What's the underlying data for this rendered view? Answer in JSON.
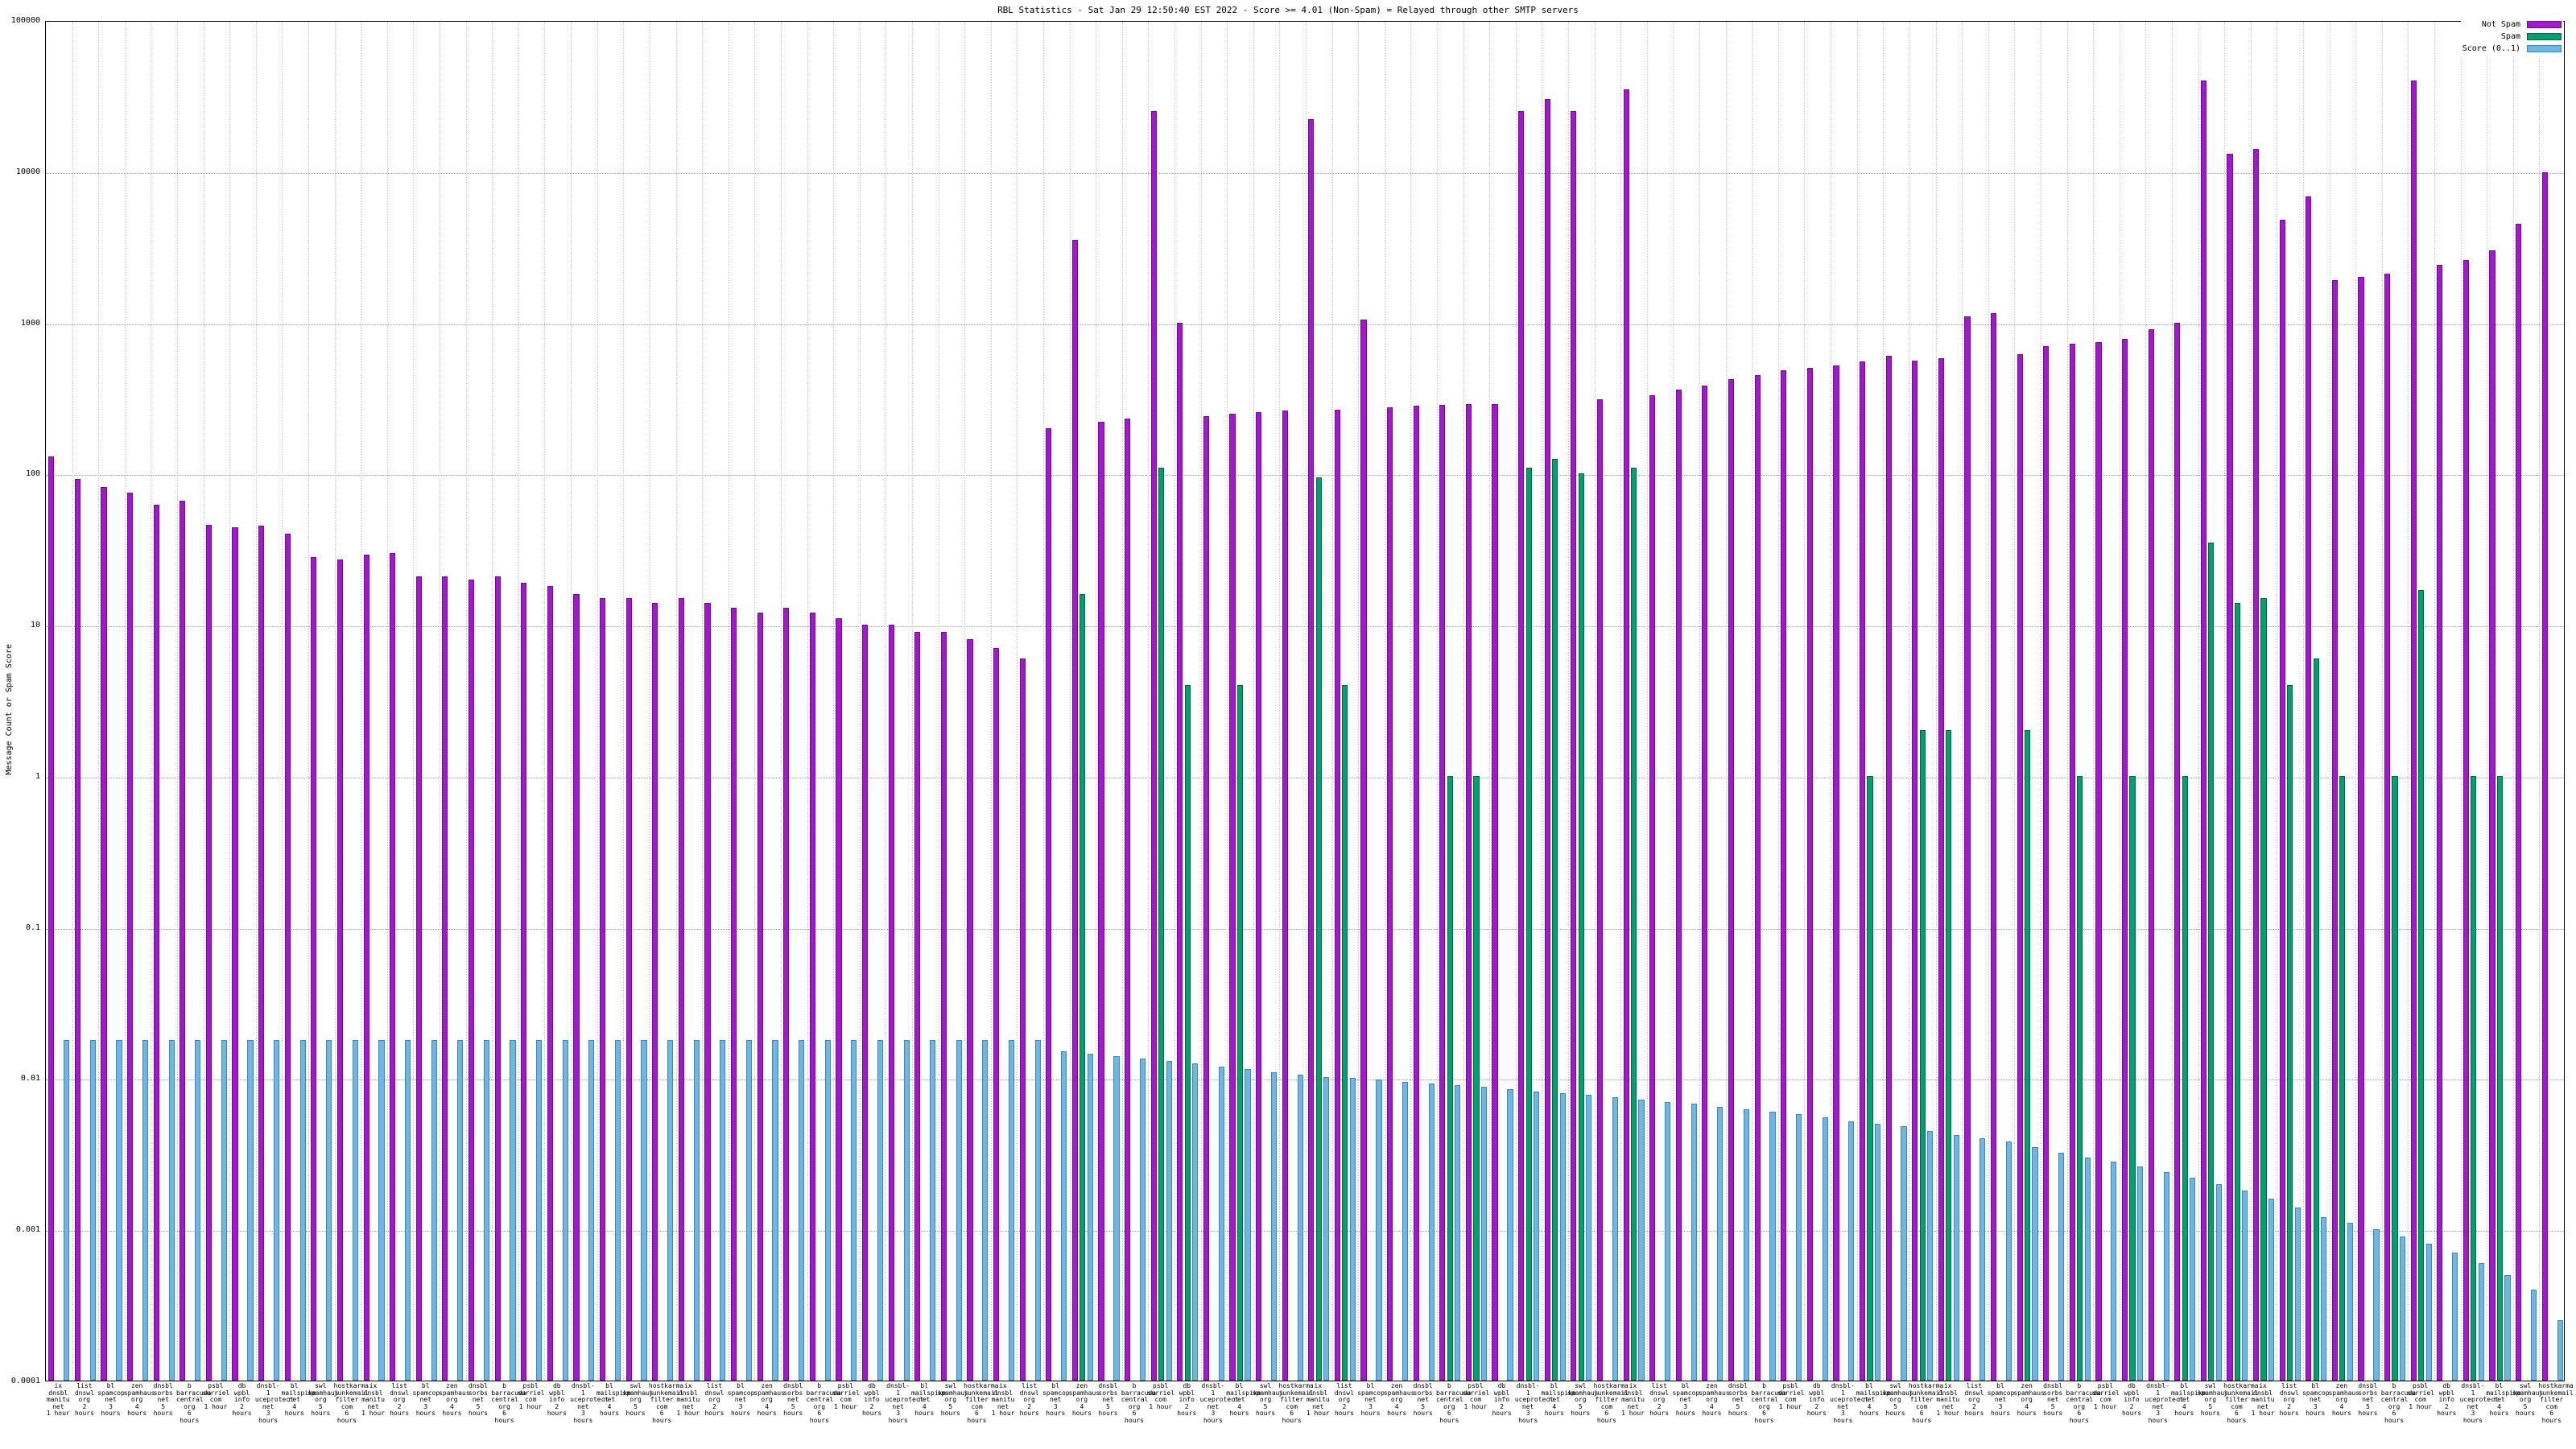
{
  "title": "RBL Statistics - Sat Jan 29 12:50:40 EST 2022 - Score >= 4.01 (Non-Spam) = Relayed through other SMTP servers",
  "chart_data": {
    "type": "bar",
    "ylabel": "Message Count or Spam Score",
    "xlabel": "",
    "yscale": "log",
    "ylim": [
      0.0001,
      100000
    ],
    "yticks": [
      100000,
      10000,
      1000,
      100,
      10,
      1,
      0.1,
      0.01,
      0.001,
      0.0001
    ],
    "ytick_labels": [
      "100000",
      "10000",
      "1000",
      "100",
      "10",
      "1",
      "0.1",
      "0.01",
      "0.001",
      "0.0001"
    ],
    "grid": "dotted",
    "legend_position": "top-right",
    "categories": [
      "ix\ndnsbl\nmanitu\nnet\n1 hour",
      "list\ndnswl\norg\n2 hours",
      "bl\nspamcop\nnet\n3 hours",
      "zen\nspamhaus\norg\n4 hours",
      "dnsbl\nsorbs\nnet\n5 hours",
      "b\nbarracuda\ncentral\norg\n6 hours",
      "psbl\nsurriel\ncom\n1 hour",
      "db\nwpbl\ninfo\n2 hours",
      "dnsbl-1\nuceprotect\nnet\n3 hours",
      "bl\nmailspike\nnet\n4 hours",
      "swl\nspamhaus\norg\n5 hours",
      "hostkarma\njunkemail\nfilter\ncom\n6 hours",
      "ix\ndnsbl\nmanitu\nnet\n1 hour",
      "list\ndnswl\norg\n2 hours",
      "bl\nspamcop\nnet\n3 hours",
      "zen\nspamhaus\norg\n4 hours",
      "dnsbl\nsorbs\nnet\n5 hours",
      "b\nbarracuda\ncentral\norg\n6 hours",
      "psbl\nsurriel\ncom\n1 hour",
      "db\nwpbl\ninfo\n2 hours",
      "dnsbl-1\nuceprotect\nnet\n3 hours",
      "bl\nmailspike\nnet\n4 hours",
      "swl\nspamhaus\norg\n5 hours",
      "hostkarma\njunkemail\nfilter\ncom\n6 hours",
      "ix\ndnsbl\nmanitu\nnet\n1 hour",
      "list\ndnswl\norg\n2 hours",
      "bl\nspamcop\nnet\n3 hours",
      "zen\nspamhaus\norg\n4 hours",
      "dnsbl\nsorbs\nnet\n5 hours",
      "b\nbarracuda\ncentral\norg\n6 hours",
      "psbl\nsurriel\ncom\n1 hour",
      "db\nwpbl\ninfo\n2 hours",
      "dnsbl-1\nuceprotect\nnet\n3 hours",
      "bl\nmailspike\nnet\n4 hours",
      "swl\nspamhaus\norg\n5 hours",
      "hostkarma\njunkemail\nfilter\ncom\n6 hours",
      "ix\ndnsbl\nmanitu\nnet\n1 hour",
      "list\ndnswl\norg\n2 hours",
      "bl\nspamcop\nnet\n3 hours",
      "zen\nspamhaus\norg\n4 hours",
      "dnsbl\nsorbs\nnet\n5 hours",
      "b\nbarracuda\ncentral\norg\n6 hours",
      "psbl\nsurriel\ncom\n1 hour",
      "db\nwpbl\ninfo\n2 hours",
      "dnsbl-1\nuceprotect\nnet\n3 hours",
      "bl\nmailspike\nnet\n4 hours",
      "swl\nspamhaus\norg\n5 hours",
      "hostkarma\njunkemail\nfilter\ncom\n6 hours",
      "ix\ndnsbl\nmanitu\nnet\n1 hour",
      "list\ndnswl\norg\n2 hours",
      "bl\nspamcop\nnet\n3 hours",
      "zen\nspamhaus\norg\n4 hours",
      "dnsbl\nsorbs\nnet\n5 hours",
      "b\nbarracuda\ncentral\norg\n6 hours",
      "psbl\nsurriel\ncom\n1 hour",
      "db\nwpbl\ninfo\n2 hours",
      "dnsbl-1\nuceprotect\nnet\n3 hours",
      "bl\nmailspike\nnet\n4 hours",
      "swl\nspamhaus\norg\n5 hours",
      "hostkarma\njunkemail\nfilter\ncom\n6 hours",
      "ix\ndnsbl\nmanitu\nnet\n1 hour",
      "list\ndnswl\norg\n2 hours",
      "bl\nspamcop\nnet\n3 hours",
      "zen\nspamhaus\norg\n4 hours",
      "dnsbl\nsorbs\nnet\n5 hours",
      "b\nbarracuda\ncentral\norg\n6 hours",
      "psbl\nsurriel\ncom\n1 hour",
      "db\nwpbl\ninfo\n2 hours",
      "dnsbl-1\nuceprotect\nnet\n3 hours",
      "bl\nmailspike\nnet\n4 hours",
      "swl\nspamhaus\norg\n5 hours",
      "hostkarma\njunkemail\nfilter\ncom\n6 hours",
      "ix\ndnsbl\nmanitu\nnet\n1 hour",
      "list\ndnswl\norg\n2 hours",
      "bl\nspamcop\nnet\n3 hours",
      "zen\nspamhaus\norg\n4 hours",
      "dnsbl\nsorbs\nnet\n5 hours",
      "b\nbarracuda\ncentral\norg\n6 hours",
      "psbl\nsurriel\ncom\n1 hour",
      "db\nwpbl\ninfo\n2 hours",
      "dnsbl-1\nuceprotect\nnet\n3 hours",
      "bl\nmailspike\nnet\n4 hours",
      "swl\nspamhaus\norg\n5 hours",
      "hostkarma\njunkemail\nfilter\ncom\n6 hours",
      "ix\ndnsbl\nmanitu\nnet\n1 hour",
      "list\ndnswl\norg\n2 hours",
      "bl\nspamcop\nnet\n3 hours",
      "zen\nspamhaus\norg\n4 hours",
      "dnsbl\nsorbs\nnet\n5 hours",
      "b\nbarracuda\ncentral\norg\n6 hours",
      "psbl\nsurriel\ncom\n1 hour",
      "db\nwpbl\ninfo\n2 hours",
      "dnsbl-1\nuceprotect\nnet\n3 hours",
      "bl\nmailspike\nnet\n4 hours",
      "swl\nspamhaus\norg\n5 hours",
      "hostkarma\njunkemail\nfilter\ncom\n6 hours"
    ],
    "series": [
      {
        "name": "Not Spam",
        "color": "#a516d0",
        "border": "#6d0d92",
        "values": [
          130,
          92,
          82,
          75,
          62,
          66,
          46,
          44,
          45,
          40,
          28,
          27,
          29,
          30,
          21,
          21,
          20,
          21,
          19,
          18,
          16,
          15,
          15,
          14,
          15,
          14,
          13,
          12,
          13,
          12,
          11,
          10,
          10,
          9,
          9,
          8,
          7,
          6,
          200,
          3500,
          220,
          230,
          25000,
          1000,
          240,
          250,
          255,
          260,
          22000,
          265,
          1050,
          275,
          280,
          285,
          290,
          290,
          25000,
          30000,
          25000,
          310,
          35000,
          330,
          360,
          380,
          420,
          450,
          480,
          500,
          520,
          550,
          600,
          560,
          580,
          1100,
          1150,
          620,
          700,
          720,
          740,
          780,
          900,
          1000,
          40000,
          13000,
          14000,
          4800,
          6800,
          1900,
          2000,
          2100,
          40000,
          2400,
          2600,
          3000,
          4500,
          9800
        ]
      },
      {
        "name": "Spam",
        "color": "#00a070",
        "border": "#00664a",
        "values": [
          null,
          null,
          null,
          null,
          null,
          null,
          null,
          null,
          null,
          null,
          null,
          null,
          null,
          null,
          null,
          null,
          null,
          null,
          null,
          null,
          null,
          null,
          null,
          null,
          null,
          null,
          null,
          null,
          null,
          null,
          null,
          null,
          null,
          null,
          null,
          null,
          null,
          null,
          null,
          16,
          null,
          null,
          110,
          4,
          null,
          4,
          null,
          null,
          95,
          4,
          null,
          null,
          null,
          1,
          1,
          null,
          110,
          125,
          100,
          null,
          110,
          null,
          null,
          null,
          null,
          null,
          null,
          null,
          null,
          1,
          null,
          2,
          2,
          null,
          null,
          2,
          null,
          1,
          null,
          1,
          null,
          1,
          35,
          14,
          15,
          4,
          6,
          1,
          null,
          1,
          17,
          null,
          1,
          1,
          null,
          null
        ]
      },
      {
        "name": "Score (0..1)",
        "color": "#6cb6e8",
        "border": "#3f85b5",
        "values": [
          0.018,
          0.018,
          0.018,
          0.018,
          0.018,
          0.018,
          0.018,
          0.018,
          0.018,
          0.018,
          0.018,
          0.018,
          0.018,
          0.018,
          0.018,
          0.018,
          0.018,
          0.018,
          0.018,
          0.018,
          0.018,
          0.018,
          0.018,
          0.018,
          0.018,
          0.018,
          0.018,
          0.018,
          0.018,
          0.018,
          0.018,
          0.018,
          0.018,
          0.018,
          0.018,
          0.018,
          0.018,
          0.018,
          0.015,
          0.0145,
          0.014,
          0.0135,
          0.013,
          0.0125,
          0.012,
          0.0115,
          0.011,
          0.0105,
          0.0102,
          0.01,
          0.0098,
          0.0095,
          0.0092,
          0.009,
          0.0088,
          0.0085,
          0.0082,
          0.008,
          0.0078,
          0.0075,
          0.0072,
          0.007,
          0.0068,
          0.0065,
          0.0062,
          0.006,
          0.0058,
          0.0055,
          0.0052,
          0.005,
          0.0048,
          0.0045,
          0.0042,
          0.004,
          0.0038,
          0.0035,
          0.0032,
          0.003,
          0.0028,
          0.0026,
          0.0024,
          0.0022,
          0.002,
          0.0018,
          0.0016,
          0.0014,
          0.0012,
          0.0011,
          0.001,
          0.0009,
          0.0008,
          0.0007,
          0.0006,
          0.0005,
          0.0004,
          0.00025
        ]
      }
    ]
  }
}
